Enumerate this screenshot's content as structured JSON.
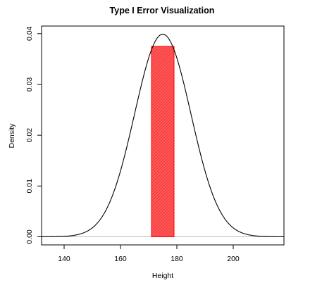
{
  "chart_data": {
    "type": "line",
    "title": "Type I Error Visualization",
    "xlabel": "Height",
    "ylabel": "Density",
    "xlim": [
      132,
      218
    ],
    "ylim": [
      -0.0016,
      0.0415
    ],
    "x_ticks": [
      140,
      160,
      180,
      200
    ],
    "y_ticks": [
      0.0,
      0.01,
      0.02,
      0.03,
      0.04
    ],
    "y_tick_labels": [
      "0.00",
      "0.01",
      "0.02",
      "0.03",
      "0.04"
    ],
    "x_tick_labels": [
      "140",
      "160",
      "180",
      "200"
    ],
    "grid": false,
    "legend": "none",
    "series": [
      {
        "curve": "normal",
        "mean": 175,
        "sd": 10,
        "x_range": [
          132,
          218
        ],
        "color": "#000000"
      }
    ],
    "baseline": {
      "y": 0,
      "color": "#bebebe"
    },
    "shaded_region": {
      "x_start": 171,
      "x_end": 179,
      "y_bottom": 0,
      "y_top": 0.0375,
      "fill": "#ff5555",
      "hatch": "#ee2222",
      "border": "#ff0000"
    }
  }
}
